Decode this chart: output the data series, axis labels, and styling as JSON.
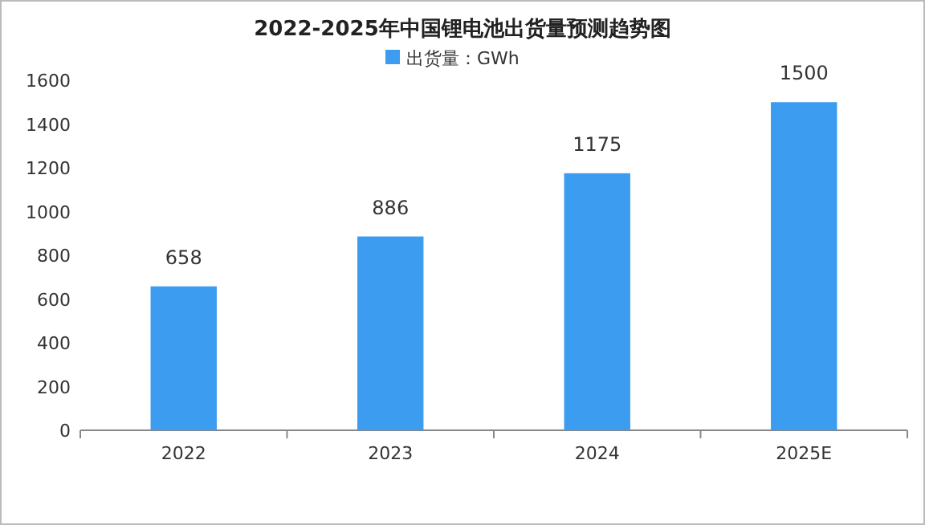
{
  "chart_data": {
    "type": "bar",
    "title": "2022-2025年中国锂电池出货量预测趋势图",
    "categories": [
      "2022",
      "2023",
      "2024",
      "2025E"
    ],
    "series": [
      {
        "name": "出货量：GWh",
        "color": "#3c9cf0",
        "values": [
          658,
          886,
          1175,
          1500
        ]
      }
    ],
    "ylim": [
      0,
      1600
    ],
    "yticks": [
      0,
      200,
      400,
      600,
      800,
      1000,
      1200,
      1400,
      1600
    ],
    "data_labels": true,
    "legend": "top",
    "grid": false
  }
}
